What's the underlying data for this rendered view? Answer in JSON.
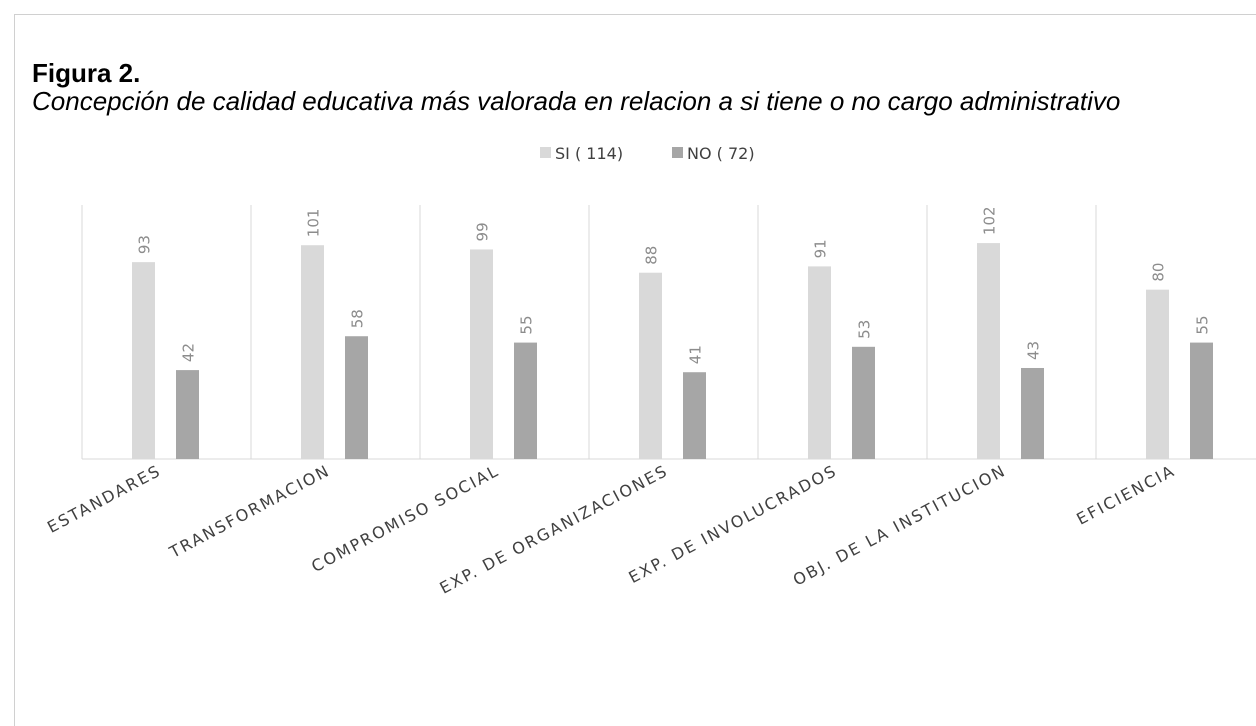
{
  "chart_data": {
    "type": "bar",
    "title": "Figura 2.",
    "subtitle": "Concepción de calidad educativa más valorada en relacion a si tiene o no cargo administrativo",
    "categories": [
      "ESTANDARES",
      "TRANSFORMACION",
      "COMPROMISO SOCIAL",
      "EXP. DE ORGANIZACIONES",
      "EXP. DE INVOLUCRADOS",
      "OBJ. DE LA INSTITUCION",
      "EFICIENCIA"
    ],
    "series": [
      {
        "name": "SI ( 114)",
        "color": "#d9d9d9",
        "values": [
          93,
          101,
          99,
          88,
          91,
          102,
          80
        ]
      },
      {
        "name": "NO ( 72)",
        "color": "#a6a6a6",
        "values": [
          42,
          58,
          55,
          41,
          53,
          43,
          55
        ]
      }
    ],
    "ylim": [
      0,
      120
    ],
    "legend": "top"
  }
}
